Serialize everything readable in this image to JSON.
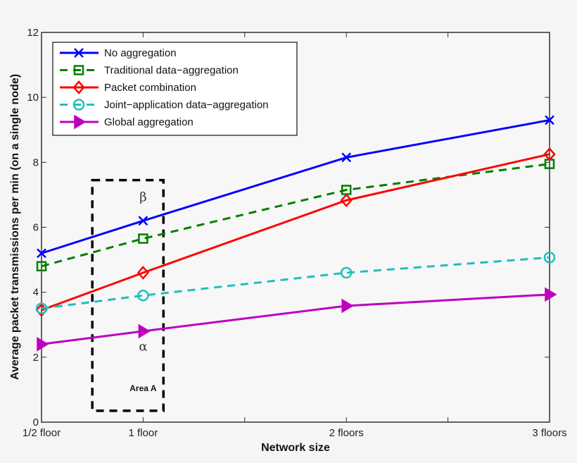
{
  "chart_data": {
    "type": "line",
    "title": "",
    "xlabel": "Network size",
    "ylabel": "Average packet transmissions per min (on a single node)",
    "x": [
      0.5,
      1,
      2,
      3
    ],
    "x_tick_labels": [
      "1/2 floor",
      "1 floor",
      "2 floors",
      "3 floors"
    ],
    "x_ticks_all": [
      0.5,
      1,
      1.5,
      2,
      2.5,
      3
    ],
    "xlim": [
      0.5,
      3
    ],
    "ylim": [
      0,
      12
    ],
    "y_ticks": [
      0,
      2,
      4,
      6,
      8,
      10,
      12
    ],
    "grid": false,
    "legend_position": "upper left",
    "series": [
      {
        "name": "No aggregation",
        "color": "#0000ff",
        "linestyle": "solid",
        "marker": "x",
        "values": [
          5.2,
          6.2,
          8.15,
          9.3
        ]
      },
      {
        "name": "Traditional data−aggregation",
        "color": "#008000",
        "linestyle": "dashed",
        "marker": "square",
        "values": [
          4.8,
          5.65,
          7.15,
          7.95
        ]
      },
      {
        "name": "Packet combination",
        "color": "#ff0000",
        "linestyle": "solid",
        "marker": "diamond",
        "values": [
          3.45,
          4.6,
          6.83,
          8.25
        ]
      },
      {
        "name": "Joint−application data−aggregation",
        "color": "#1fbfbf",
        "linestyle": "dashed",
        "marker": "circle",
        "values": [
          3.5,
          3.9,
          4.6,
          5.07
        ]
      },
      {
        "name": "Global aggregation",
        "color": "#bf00bf",
        "linestyle": "solid",
        "marker": "triangle-right",
        "values": [
          2.4,
          2.8,
          3.58,
          3.93
        ]
      }
    ],
    "annotations": [
      {
        "text": "β",
        "x": 1,
        "y": 6.8
      },
      {
        "text": "α",
        "x": 1,
        "y": 2.2
      },
      {
        "text": "Area A",
        "x": 1,
        "y": 0.95
      }
    ],
    "highlight_box": {
      "label": "Area A",
      "x_range": [
        0.75,
        1.1
      ],
      "y_range": [
        0.35,
        7.45
      ],
      "style": "dashed"
    }
  }
}
